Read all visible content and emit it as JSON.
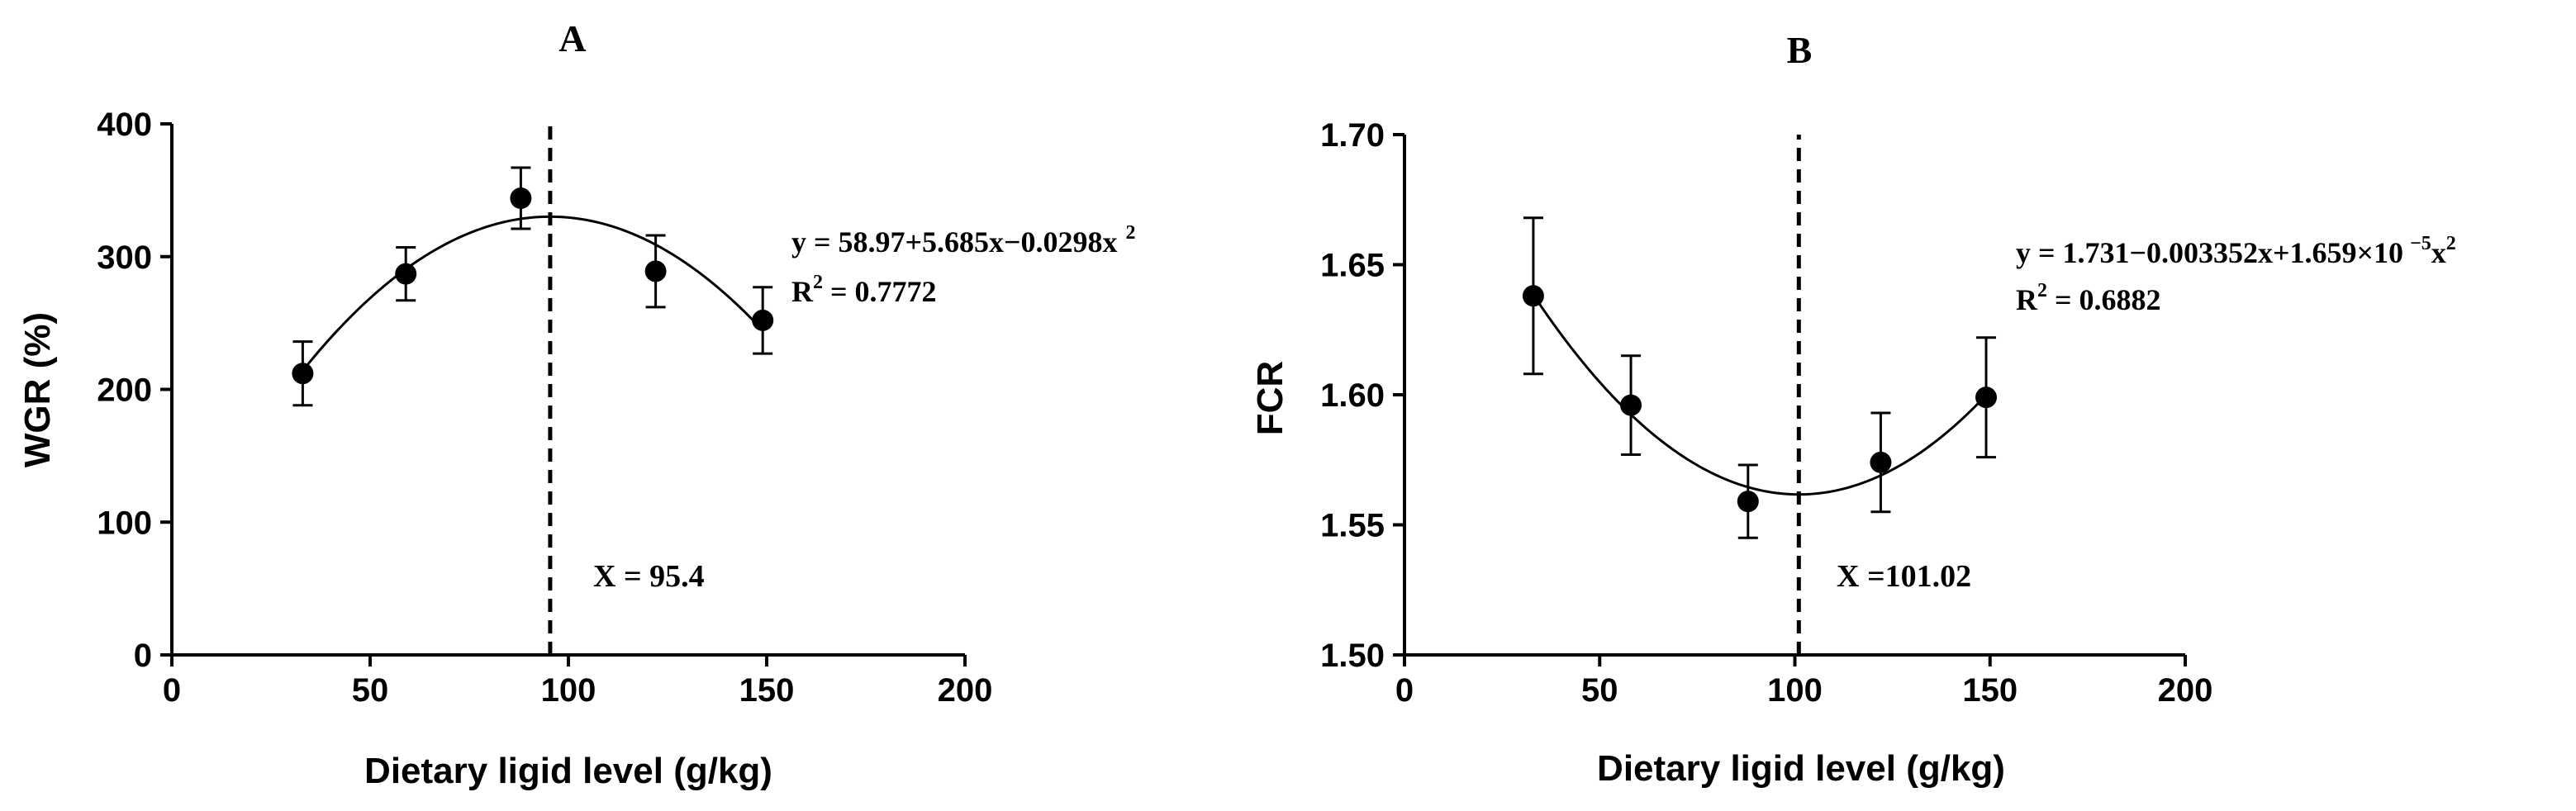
{
  "chart_data": [
    {
      "type": "scatter",
      "title": "A",
      "xlabel": "Dietary ligid level (g/kg)",
      "ylabel": "WGR (%)",
      "xlim": [
        0,
        200
      ],
      "ylim": [
        0,
        400
      ],
      "xticks": [
        0,
        50,
        100,
        150,
        200
      ],
      "yticks": [
        0,
        100,
        200,
        300,
        400
      ],
      "x_tick_labels": [
        "0",
        "50",
        "100",
        "150",
        "200"
      ],
      "y_tick_labels": [
        "0",
        "100",
        "200",
        "300",
        "400"
      ],
      "points": [
        {
          "x": 33,
          "y": 212,
          "err": 24
        },
        {
          "x": 59,
          "y": 287,
          "err": 20
        },
        {
          "x": 88,
          "y": 344,
          "err": 23
        },
        {
          "x": 122,
          "y": 289,
          "err": 27
        },
        {
          "x": 149,
          "y": 252,
          "err": 25
        }
      ],
      "fit": {
        "a": 58.97,
        "b": 5.685,
        "c": -0.0298,
        "x_from": 33,
        "x_to": 149
      },
      "vline_x": 95.4,
      "equation": {
        "main": "y = 58.97+5.685x−0.0298x",
        "sup": "2"
      },
      "r2": {
        "prefix": "R",
        "sup": "2",
        "value": " = 0.7772"
      },
      "vline_label": "X = 95.4",
      "grid": false
    },
    {
      "type": "scatter",
      "title": "B",
      "xlabel": "Dietary ligid level (g/kg)",
      "ylabel": "FCR",
      "xlim": [
        0,
        200
      ],
      "ylim": [
        1.5,
        1.7
      ],
      "xticks": [
        0,
        50,
        100,
        150,
        200
      ],
      "yticks": [
        1.5,
        1.55,
        1.6,
        1.65,
        1.7
      ],
      "x_tick_labels": [
        "0",
        "50",
        "100",
        "150",
        "200"
      ],
      "y_tick_labels": [
        "1.50",
        "1.55",
        "1.60",
        "1.65",
        "1.70"
      ],
      "points": [
        {
          "x": 33,
          "y": 1.638,
          "err": 0.03
        },
        {
          "x": 58,
          "y": 1.596,
          "err": 0.019
        },
        {
          "x": 88,
          "y": 1.559,
          "err": 0.014
        },
        {
          "x": 122,
          "y": 1.574,
          "err": 0.019
        },
        {
          "x": 149,
          "y": 1.599,
          "err": 0.023
        }
      ],
      "fit": {
        "a": 1.731,
        "b": -0.003352,
        "c": 1.659e-05,
        "x_from": 33,
        "x_to": 149
      },
      "vline_x": 101.02,
      "equation": {
        "main": "y = 1.731−0.003352x+1.659×10",
        "sup1": "−5",
        "main2": "x",
        "sup2": "2"
      },
      "r2": {
        "prefix": "R",
        "sup": "2",
        "value": " = 0.6882"
      },
      "vline_label": "X =101.02",
      "grid": false
    }
  ]
}
